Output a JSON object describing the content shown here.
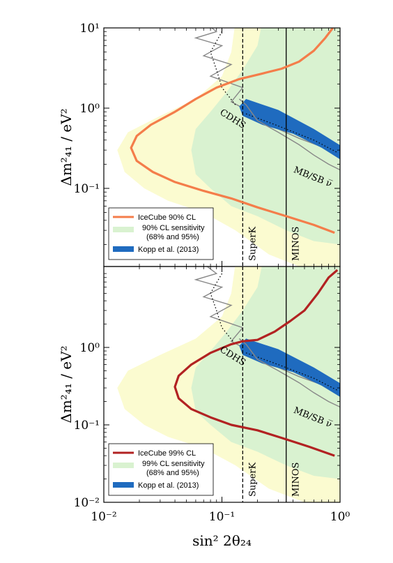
{
  "chart_data": [
    {
      "type": "area",
      "panel": "top",
      "xscale": "log",
      "yscale": "log",
      "xlim": [
        0.01,
        1
      ],
      "ylim": [
        0.01,
        10
      ],
      "ylabel": "Δm²₄₁ / eV²",
      "yticks": [
        "10⁻¹",
        "10⁰",
        "10¹"
      ],
      "legend": {
        "loc": "lower-left",
        "entries": [
          "IceCube 90% CL",
          "90% CL sensitivity",
          "(68% and 95%)",
          "Kopp et al. (2013)"
        ]
      },
      "annotations": [
        "CDHS",
        "MB/SB ν̅",
        "SuperK",
        "MINOS"
      ],
      "colors": {
        "contour": "#f47d4a",
        "band68": "#d9f2d0",
        "band95": "#fbfbd0",
        "kopp": "#1f6bbf",
        "exp": "#888888"
      },
      "contour": [
        [
          0.9,
          0.028
        ],
        [
          0.6,
          0.035
        ],
        [
          0.35,
          0.045
        ],
        [
          0.2,
          0.058
        ],
        [
          0.12,
          0.075
        ],
        [
          0.07,
          0.093
        ],
        [
          0.04,
          0.12
        ],
        [
          0.026,
          0.16
        ],
        [
          0.019,
          0.22
        ],
        [
          0.017,
          0.32
        ],
        [
          0.019,
          0.45
        ],
        [
          0.025,
          0.62
        ],
        [
          0.04,
          0.9
        ],
        [
          0.06,
          1.3
        ],
        [
          0.09,
          1.8
        ],
        [
          0.14,
          2.3
        ],
        [
          0.22,
          2.7
        ],
        [
          0.32,
          3.1
        ],
        [
          0.45,
          3.8
        ],
        [
          0.6,
          5.2
        ],
        [
          0.75,
          7.5
        ],
        [
          0.87,
          10
        ]
      ]
    },
    {
      "type": "area",
      "panel": "bottom",
      "xscale": "log",
      "yscale": "log",
      "xlim": [
        0.01,
        1
      ],
      "ylim": [
        0.01,
        10
      ],
      "xlabel": "sin² 2θ₂₄",
      "ylabel": "Δm²₄₁ / eV²",
      "xticks": [
        "10⁻²",
        "10⁻¹",
        "10⁰"
      ],
      "yticks": [
        "10⁻²",
        "10⁻¹",
        "10⁰"
      ],
      "legend": {
        "loc": "lower-left",
        "entries": [
          "IceCube 99% CL",
          "99% CL sensitivity",
          "(68% and 95%)",
          "Kopp et al. (2013)"
        ]
      },
      "annotations": [
        "CDHS",
        "MB/SB ν̅",
        "SuperK",
        "MINOS"
      ],
      "colors": {
        "contour": "#b22222",
        "band68": "#d9f2d0",
        "band95": "#fbfbd0",
        "kopp": "#1f6bbf",
        "exp": "#888888"
      },
      "contour": [
        [
          0.9,
          0.04
        ],
        [
          0.55,
          0.052
        ],
        [
          0.32,
          0.068
        ],
        [
          0.2,
          0.085
        ],
        [
          0.12,
          0.1
        ],
        [
          0.08,
          0.125
        ],
        [
          0.055,
          0.16
        ],
        [
          0.043,
          0.22
        ],
        [
          0.04,
          0.31
        ],
        [
          0.043,
          0.43
        ],
        [
          0.055,
          0.6
        ],
        [
          0.08,
          0.85
        ],
        [
          0.12,
          1.1
        ],
        [
          0.15,
          1.2
        ],
        [
          0.2,
          1.25
        ],
        [
          0.28,
          1.6
        ],
        [
          0.38,
          2.2
        ],
        [
          0.5,
          3
        ],
        [
          0.65,
          5
        ],
        [
          0.8,
          8
        ],
        [
          0.95,
          10
        ]
      ]
    }
  ]
}
